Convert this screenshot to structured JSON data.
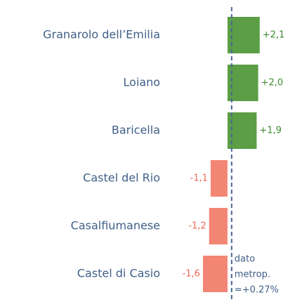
{
  "chart_data": {
    "type": "bar",
    "orientation": "horizontal",
    "categories": [
      "Granarolo dell’Emilia",
      "Loiano",
      "Baricella",
      "Castel del Rio",
      "Casalfiumanese",
      "Castel di Casio"
    ],
    "values": [
      2.1,
      2.0,
      1.9,
      -1.1,
      -1.2,
      -1.6
    ],
    "value_labels": [
      "+2,1",
      "+2,0",
      "+1,9",
      "-1,1",
      "-1,2",
      "-1,6"
    ],
    "positive_color": "#5b9e45",
    "negative_color": "#f28574",
    "xlim": [
      -4.3,
      4.4
    ],
    "reference": {
      "value": 0.27,
      "lines": [
        "dato",
        "metrop.",
        "=+0.27%"
      ]
    }
  }
}
